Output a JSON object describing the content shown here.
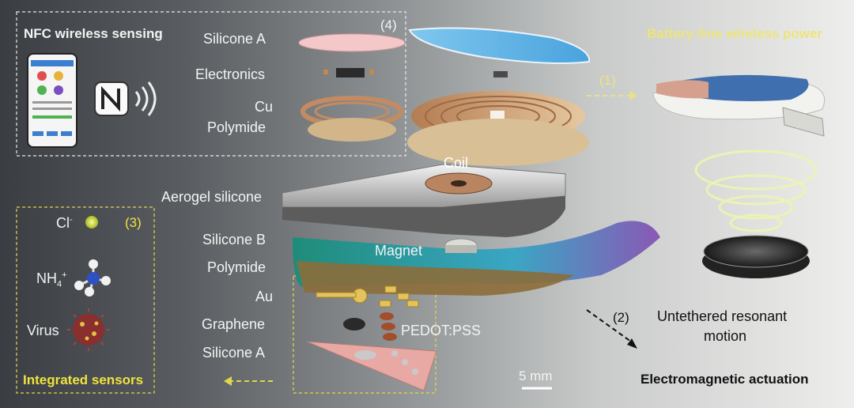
{
  "colors": {
    "accent_yellow": "#f0e340",
    "background_dark": "#3a3d41",
    "background_light": "#eeeeec",
    "text_dark": "#111111",
    "text_light": "#f3f3f3"
  },
  "panels": {
    "nfc": {
      "title": "NFC wireless sensing",
      "icons": [
        "phone-app-icon",
        "nfc-logo-icon",
        "wireless-signal-icon"
      ]
    },
    "layers_top": {
      "number": "(4)",
      "labels": [
        "Silicone A",
        "Electronics",
        "Cu",
        "Polymide"
      ]
    },
    "middle": {
      "coil": "Coil",
      "aerogel": "Aerogel silicone",
      "magnet": "Magnet"
    },
    "layers_bottom": [
      "Silicone B",
      "Polymide",
      "Au",
      "Graphene",
      "Silicone A"
    ],
    "pedot": "PEDOT:PSS",
    "sensors": {
      "number": "(3)",
      "chloride": "Cl",
      "chloride_sup": "-",
      "ammonium": "NH",
      "ammonium_sub": "4",
      "ammonium_sup": "+",
      "virus": "Virus",
      "title": "Integrated sensors"
    },
    "power": {
      "title": "Battery-free wireless power",
      "number": "(1)"
    },
    "actuation": {
      "number": "(2)",
      "line1": "Untethered resonant",
      "line2": "motion",
      "title": "Electromagnetic actuation"
    },
    "scale": "5 mm"
  }
}
